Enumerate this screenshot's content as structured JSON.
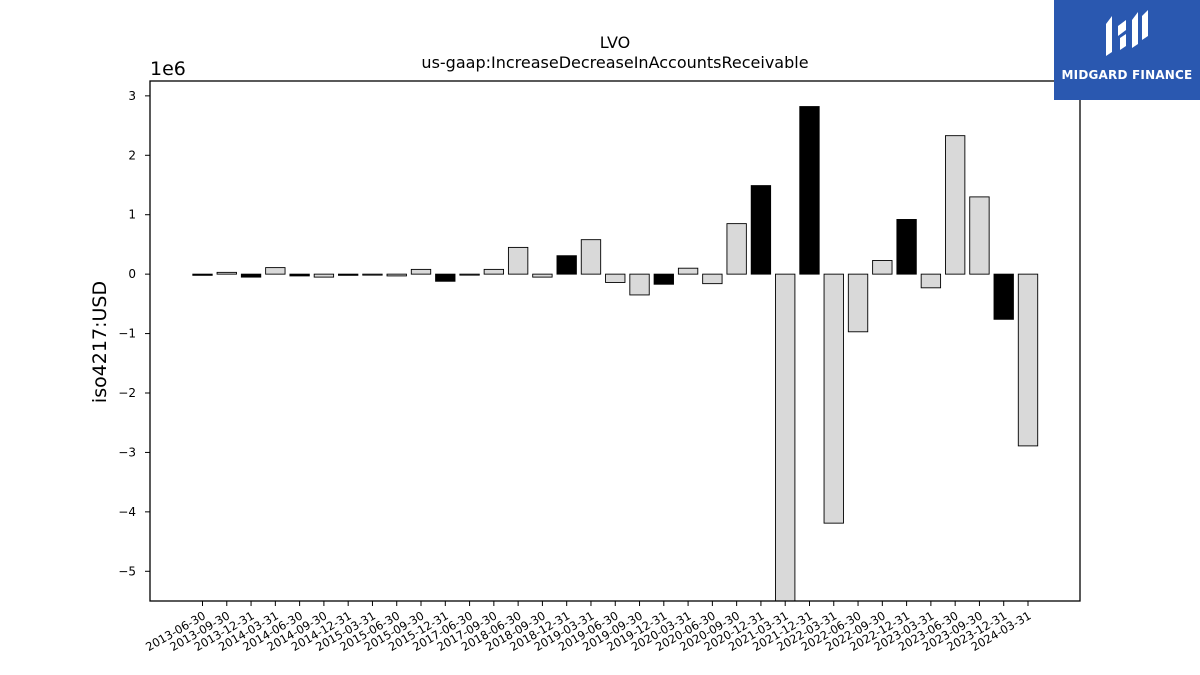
{
  "brand": {
    "name": "MIDGARD FINANCE",
    "color": "#2a58b0"
  },
  "chart_data": {
    "type": "bar",
    "title": "LVO",
    "subtitle": "us-gaap:IncreaseDecreaseInAccountsReceivable",
    "ylabel": "iso4217:USD",
    "xlabel": "",
    "scale_label": "1e6",
    "ylim": [
      -5500000,
      3250000
    ],
    "yticks": [
      3,
      2,
      1,
      0,
      -1,
      -2,
      -3,
      -4,
      -5
    ],
    "yticklabels": [
      "3",
      "2",
      "1",
      "0",
      "−1",
      "−2",
      "−3",
      "−4",
      "−5"
    ],
    "grid": false,
    "categories": [
      "2013-06-30",
      "2013-09-30",
      "2013-12-31",
      "2014-03-31",
      "2014-06-30",
      "2014-09-30",
      "2014-12-31",
      "2015-03-31",
      "2015-06-30",
      "2015-09-30",
      "2015-12-31",
      "2017-06-30",
      "2017-09-30",
      "2018-06-30",
      "2018-09-30",
      "2018-12-31",
      "2019-03-31",
      "2019-06-30",
      "2019-09-30",
      "2019-12-31",
      "2020-03-31",
      "2020-06-30",
      "2020-09-30",
      "2020-12-31",
      "2021-03-31",
      "2021-12-31",
      "2022-03-31",
      "2022-06-30",
      "2022-09-30",
      "2022-12-31",
      "2023-03-31",
      "2023-06-30",
      "2023-09-30",
      "2023-12-31",
      "2024-03-31"
    ],
    "values": [
      -20000,
      30000,
      -50000,
      110000,
      -30000,
      -50000,
      -20000,
      -10000,
      -30000,
      80000,
      -120000,
      -10000,
      80000,
      450000,
      -50000,
      310000,
      580000,
      -140000,
      -350000,
      -170000,
      100000,
      -160000,
      850000,
      1490000,
      -5500000,
      2820000,
      -4190000,
      -970000,
      230000,
      920000,
      -230000,
      2330000,
      1300000,
      -760000,
      -2890000
    ],
    "bar_colors": [
      "#000000",
      "#d9d9d9",
      "#000000",
      "#d9d9d9",
      "#000000",
      "#d9d9d9",
      "#000000",
      "#d9d9d9",
      "#d9d9d9",
      "#d9d9d9",
      "#000000",
      "#d9d9d9",
      "#d9d9d9",
      "#d9d9d9",
      "#d9d9d9",
      "#000000",
      "#d9d9d9",
      "#d9d9d9",
      "#d9d9d9",
      "#000000",
      "#d9d9d9",
      "#d9d9d9",
      "#d9d9d9",
      "#000000",
      "#d9d9d9",
      "#000000",
      "#d9d9d9",
      "#d9d9d9",
      "#d9d9d9",
      "#000000",
      "#d9d9d9",
      "#d9d9d9",
      "#d9d9d9",
      "#000000",
      "#d9d9d9"
    ]
  }
}
